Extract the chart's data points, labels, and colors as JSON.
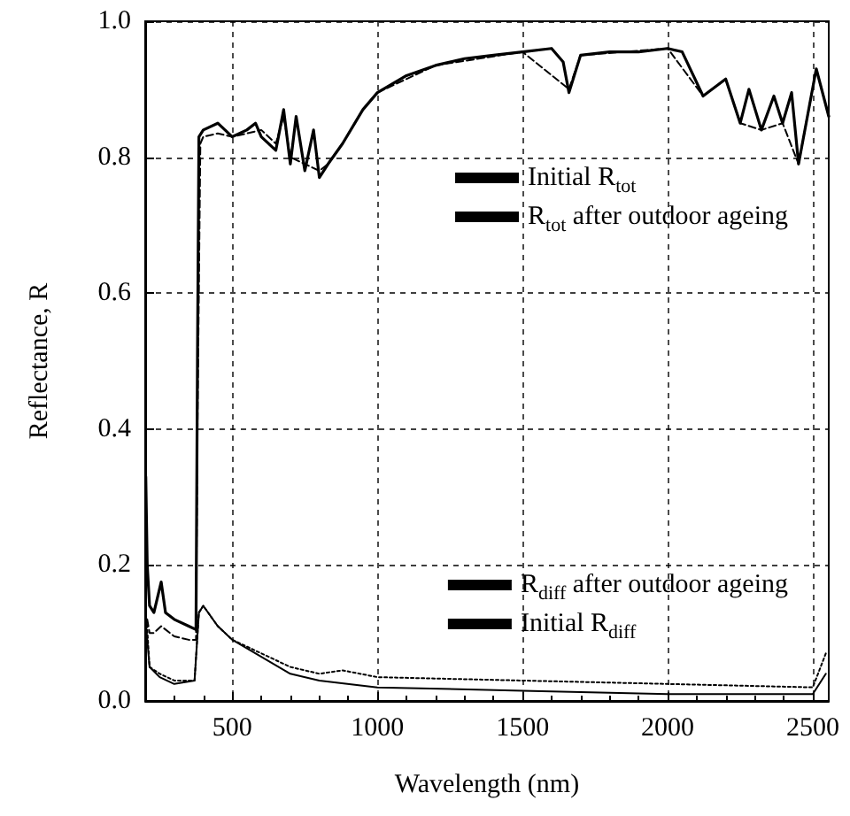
{
  "chart_data": {
    "type": "line",
    "xlabel": "Wavelength (nm)",
    "ylabel": "Reflectance, R",
    "xlim": [
      200,
      2555
    ],
    "xticks": [
      500,
      1000,
      1500,
      2000,
      2500
    ],
    "ylim": [
      0,
      1
    ],
    "yticks": [
      {
        "value": 0,
        "label": "0.0"
      },
      0.2,
      0.4,
      0.6,
      0.8,
      {
        "value": 1,
        "label": "1.0"
      }
    ],
    "grid": true,
    "legend": "right",
    "marker": "none",
    "series": [
      {
        "name": "Initial R$_{tot}$",
        "color": "#000000",
        "line_style": "solid",
        "x": [
          202,
          207,
          215,
          230,
          255,
          270,
          300,
          350,
          375,
          380,
          385,
          400,
          450,
          500,
          550,
          580,
          600,
          650,
          677,
          700,
          720,
          750,
          780,
          800,
          830,
          880,
          950,
          1000,
          1100,
          1200,
          1300,
          1400,
          1500,
          1600,
          1640,
          1660,
          1700,
          1800,
          1900,
          2000,
          2050,
          2122,
          2200,
          2250,
          2280,
          2323,
          2366,
          2396,
          2427,
          2451,
          2512,
          2555
        ],
        "values": [
          0.33,
          0.2,
          0.14,
          0.13,
          0.175,
          0.13,
          0.12,
          0.11,
          0.105,
          0.5,
          0.83,
          0.84,
          0.85,
          0.83,
          0.84,
          0.85,
          0.83,
          0.81,
          0.87,
          0.79,
          0.86,
          0.78,
          0.84,
          0.77,
          0.79,
          0.82,
          0.87,
          0.895,
          0.92,
          0.935,
          0.945,
          0.95,
          0.955,
          0.96,
          0.94,
          0.895,
          0.95,
          0.955,
          0.955,
          0.96,
          0.955,
          0.89,
          0.915,
          0.85,
          0.9,
          0.84,
          0.89,
          0.85,
          0.895,
          0.79,
          0.93,
          0.86
        ]
      },
      {
        "name": "R$_{tot}$ after outdoor ageing",
        "color": "#000000",
        "line_style": "dashed",
        "x": [
          207,
          215,
          230,
          255,
          300,
          350,
          375,
          380,
          390,
          400,
          450,
          500,
          550,
          600,
          650,
          677,
          700,
          750,
          800,
          830,
          880,
          950,
          1000,
          1200,
          1500,
          1660,
          1700,
          2000,
          2122,
          2200,
          2250,
          2323,
          2396,
          2451,
          2512,
          2555
        ],
        "values": [
          0.12,
          0.1,
          0.1,
          0.11,
          0.095,
          0.09,
          0.09,
          0.4,
          0.82,
          0.83,
          0.835,
          0.83,
          0.835,
          0.84,
          0.82,
          0.86,
          0.8,
          0.79,
          0.78,
          0.79,
          0.82,
          0.87,
          0.895,
          0.935,
          0.955,
          0.9,
          0.95,
          0.96,
          0.89,
          0.915,
          0.85,
          0.84,
          0.85,
          0.79,
          0.93,
          0.86
        ]
      },
      {
        "name": "R$_{diff}$ after outdoor ageing",
        "color": "#000000",
        "line_style": "dotted",
        "x": [
          205,
          215,
          250,
          300,
          370,
          385,
          400,
          450,
          500,
          600,
          700,
          800,
          880,
          1000,
          1500,
          2000,
          2500,
          2545
        ],
        "values": [
          0.12,
          0.05,
          0.04,
          0.03,
          0.03,
          0.13,
          0.14,
          0.11,
          0.09,
          0.07,
          0.05,
          0.04,
          0.045,
          0.035,
          0.03,
          0.025,
          0.02,
          0.07
        ]
      },
      {
        "name": "Initial R$_{diff}$",
        "color": "#000000",
        "line_style": "solid",
        "x": [
          205,
          215,
          250,
          300,
          370,
          385,
          400,
          450,
          500,
          600,
          700,
          800,
          1000,
          1500,
          2000,
          2500,
          2545
        ],
        "values": [
          0.1,
          0.05,
          0.035,
          0.025,
          0.03,
          0.13,
          0.14,
          0.11,
          0.09,
          0.065,
          0.04,
          0.03,
          0.02,
          0.015,
          0.01,
          0.01,
          0.04
        ]
      }
    ]
  }
}
